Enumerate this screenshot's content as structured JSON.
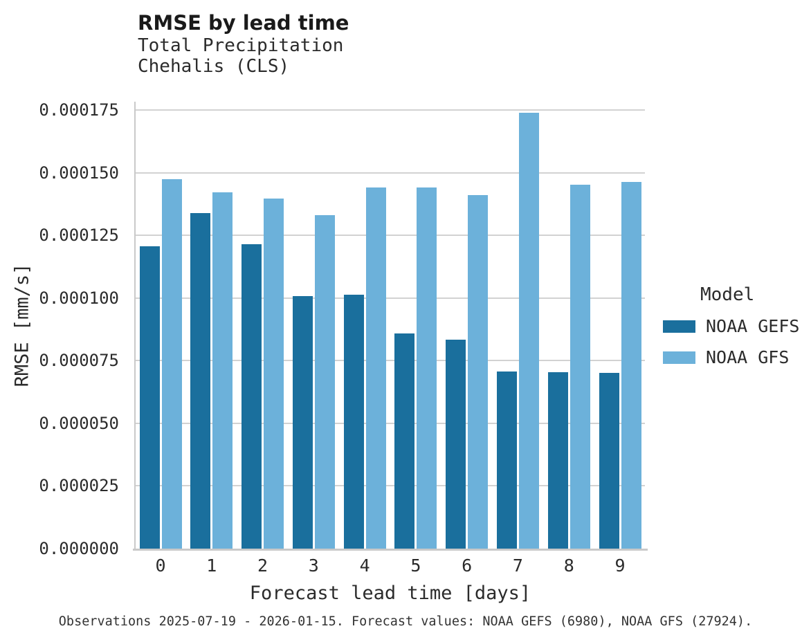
{
  "title": "RMSE by lead time",
  "subtitle_line1": "Total Precipitation",
  "subtitle_line2": "Chehalis (CLS)",
  "caption": "Observations 2025-07-19 - 2026-01-15. Forecast values: NOAA GEFS (6980), NOAA GFS (27924).",
  "legend": {
    "title": "Model",
    "entries": [
      {
        "label": "NOAA GEFS",
        "color": "#1a6f9d"
      },
      {
        "label": "NOAA GFS",
        "color": "#6cb1da"
      }
    ]
  },
  "colors": {
    "gefs": "#1a6f9d",
    "gfs": "#6cb1da",
    "gridline": "#d2d2d2",
    "spine": "#c9c9c9",
    "text": "#2b2b2b"
  },
  "chart_data": {
    "type": "bar",
    "title": "RMSE by lead time",
    "subtitle": "Total Precipitation — Chehalis (CLS)",
    "xlabel": "Forecast lead time [days]",
    "ylabel": "RMSE [mm/s]",
    "categories": [
      0,
      1,
      2,
      3,
      4,
      5,
      6,
      7,
      8,
      9
    ],
    "series": [
      {
        "name": "NOAA GEFS",
        "color": "#1a6f9d",
        "values": [
          0.0001205,
          0.0001338,
          0.0001215,
          0.0001007,
          0.0001013,
          8.58e-05,
          8.33e-05,
          7.06e-05,
          7.03e-05,
          7.02e-05
        ]
      },
      {
        "name": "NOAA GFS",
        "color": "#6cb1da",
        "values": [
          0.0001473,
          0.0001421,
          0.0001396,
          0.000133,
          0.0001441,
          0.0001441,
          0.000141,
          0.0001738,
          0.0001451,
          0.0001462
        ]
      }
    ],
    "ylim": [
      0,
      0.0001783
    ],
    "ytick_values": [
      0,
      2.5e-05,
      5e-05,
      7.5e-05,
      0.0001,
      0.000125,
      0.00015,
      0.000175
    ],
    "ytick_labels": [
      "0.000000",
      "0.000025",
      "0.000050",
      "0.000075",
      "0.000100",
      "0.000125",
      "0.000150",
      "0.000175"
    ],
    "grid": "horizontal",
    "legend_position": "right",
    "legend_title": "Model"
  }
}
